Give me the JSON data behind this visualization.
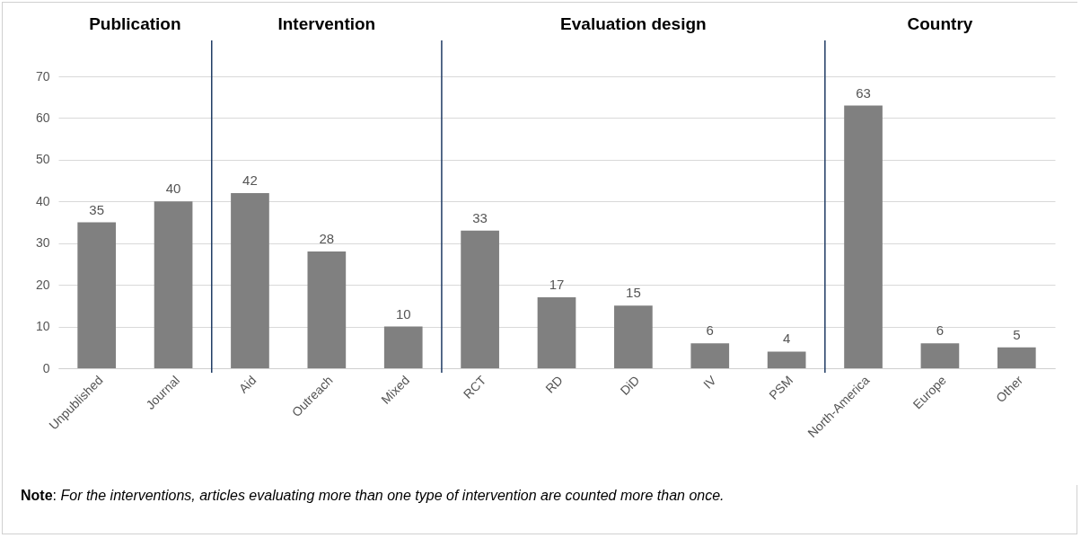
{
  "chart_data": {
    "type": "bar",
    "categories": [
      "Unpublished",
      "Journal",
      "Aid",
      "Outreach",
      "Mixed",
      "RCT",
      "RD",
      "DiD",
      "IV",
      "PSM",
      "North-America",
      "Europe",
      "Other"
    ],
    "values": [
      35,
      40,
      42,
      28,
      10,
      33,
      17,
      15,
      6,
      4,
      63,
      6,
      5
    ],
    "color": "#808080",
    "ylim": [
      0,
      70
    ],
    "yticks": [
      0,
      10,
      20,
      30,
      40,
      50,
      60,
      70
    ],
    "grid": "y",
    "data_labels": true,
    "ref_lines": [
      {
        "axis": "x",
        "value": "Aid",
        "color": "#1f3b64"
      },
      {
        "axis": "x",
        "value": "RCT",
        "color": "#1f3b64"
      },
      {
        "axis": "x",
        "value": "North-America",
        "color": "#1f3b64"
      }
    ],
    "annotations": [
      "Publication",
      "Intervention",
      "Evaluation design",
      "Country",
      "Note: For the interventions, articles evaluating more than one type of intervention are counted more than once."
    ]
  }
}
